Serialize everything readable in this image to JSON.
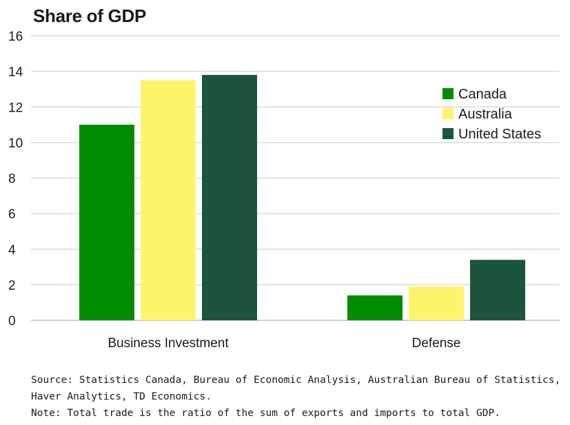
{
  "chart_data": {
    "type": "bar",
    "title": "Share of GDP",
    "categories": [
      "Business Investment",
      "Defense"
    ],
    "series": [
      {
        "name": "Canada",
        "color": "#008c00",
        "values": [
          11.0,
          1.4
        ]
      },
      {
        "name": "Australia",
        "color": "#fcf56b",
        "values": [
          13.5,
          1.9
        ]
      },
      {
        "name": "United States",
        "color": "#1c553b",
        "values": [
          13.8,
          3.4
        ]
      }
    ],
    "ylim": [
      0,
      16
    ],
    "yticks": [
      "0",
      "2",
      "4",
      "6",
      "8",
      "10",
      "12",
      "14",
      "16"
    ],
    "xlabel": "",
    "ylabel": "",
    "grid": true,
    "legend_position": "top-right"
  },
  "notes": {
    "source_line1": "Source: Statistics Canada, Bureau of Economic Analysis, Australian Bureau of Statistics,",
    "source_line2": "Haver Analytics, TD Economics.",
    "note_line": "Note: Total trade is the ratio of the sum of exports and imports to total GDP."
  }
}
